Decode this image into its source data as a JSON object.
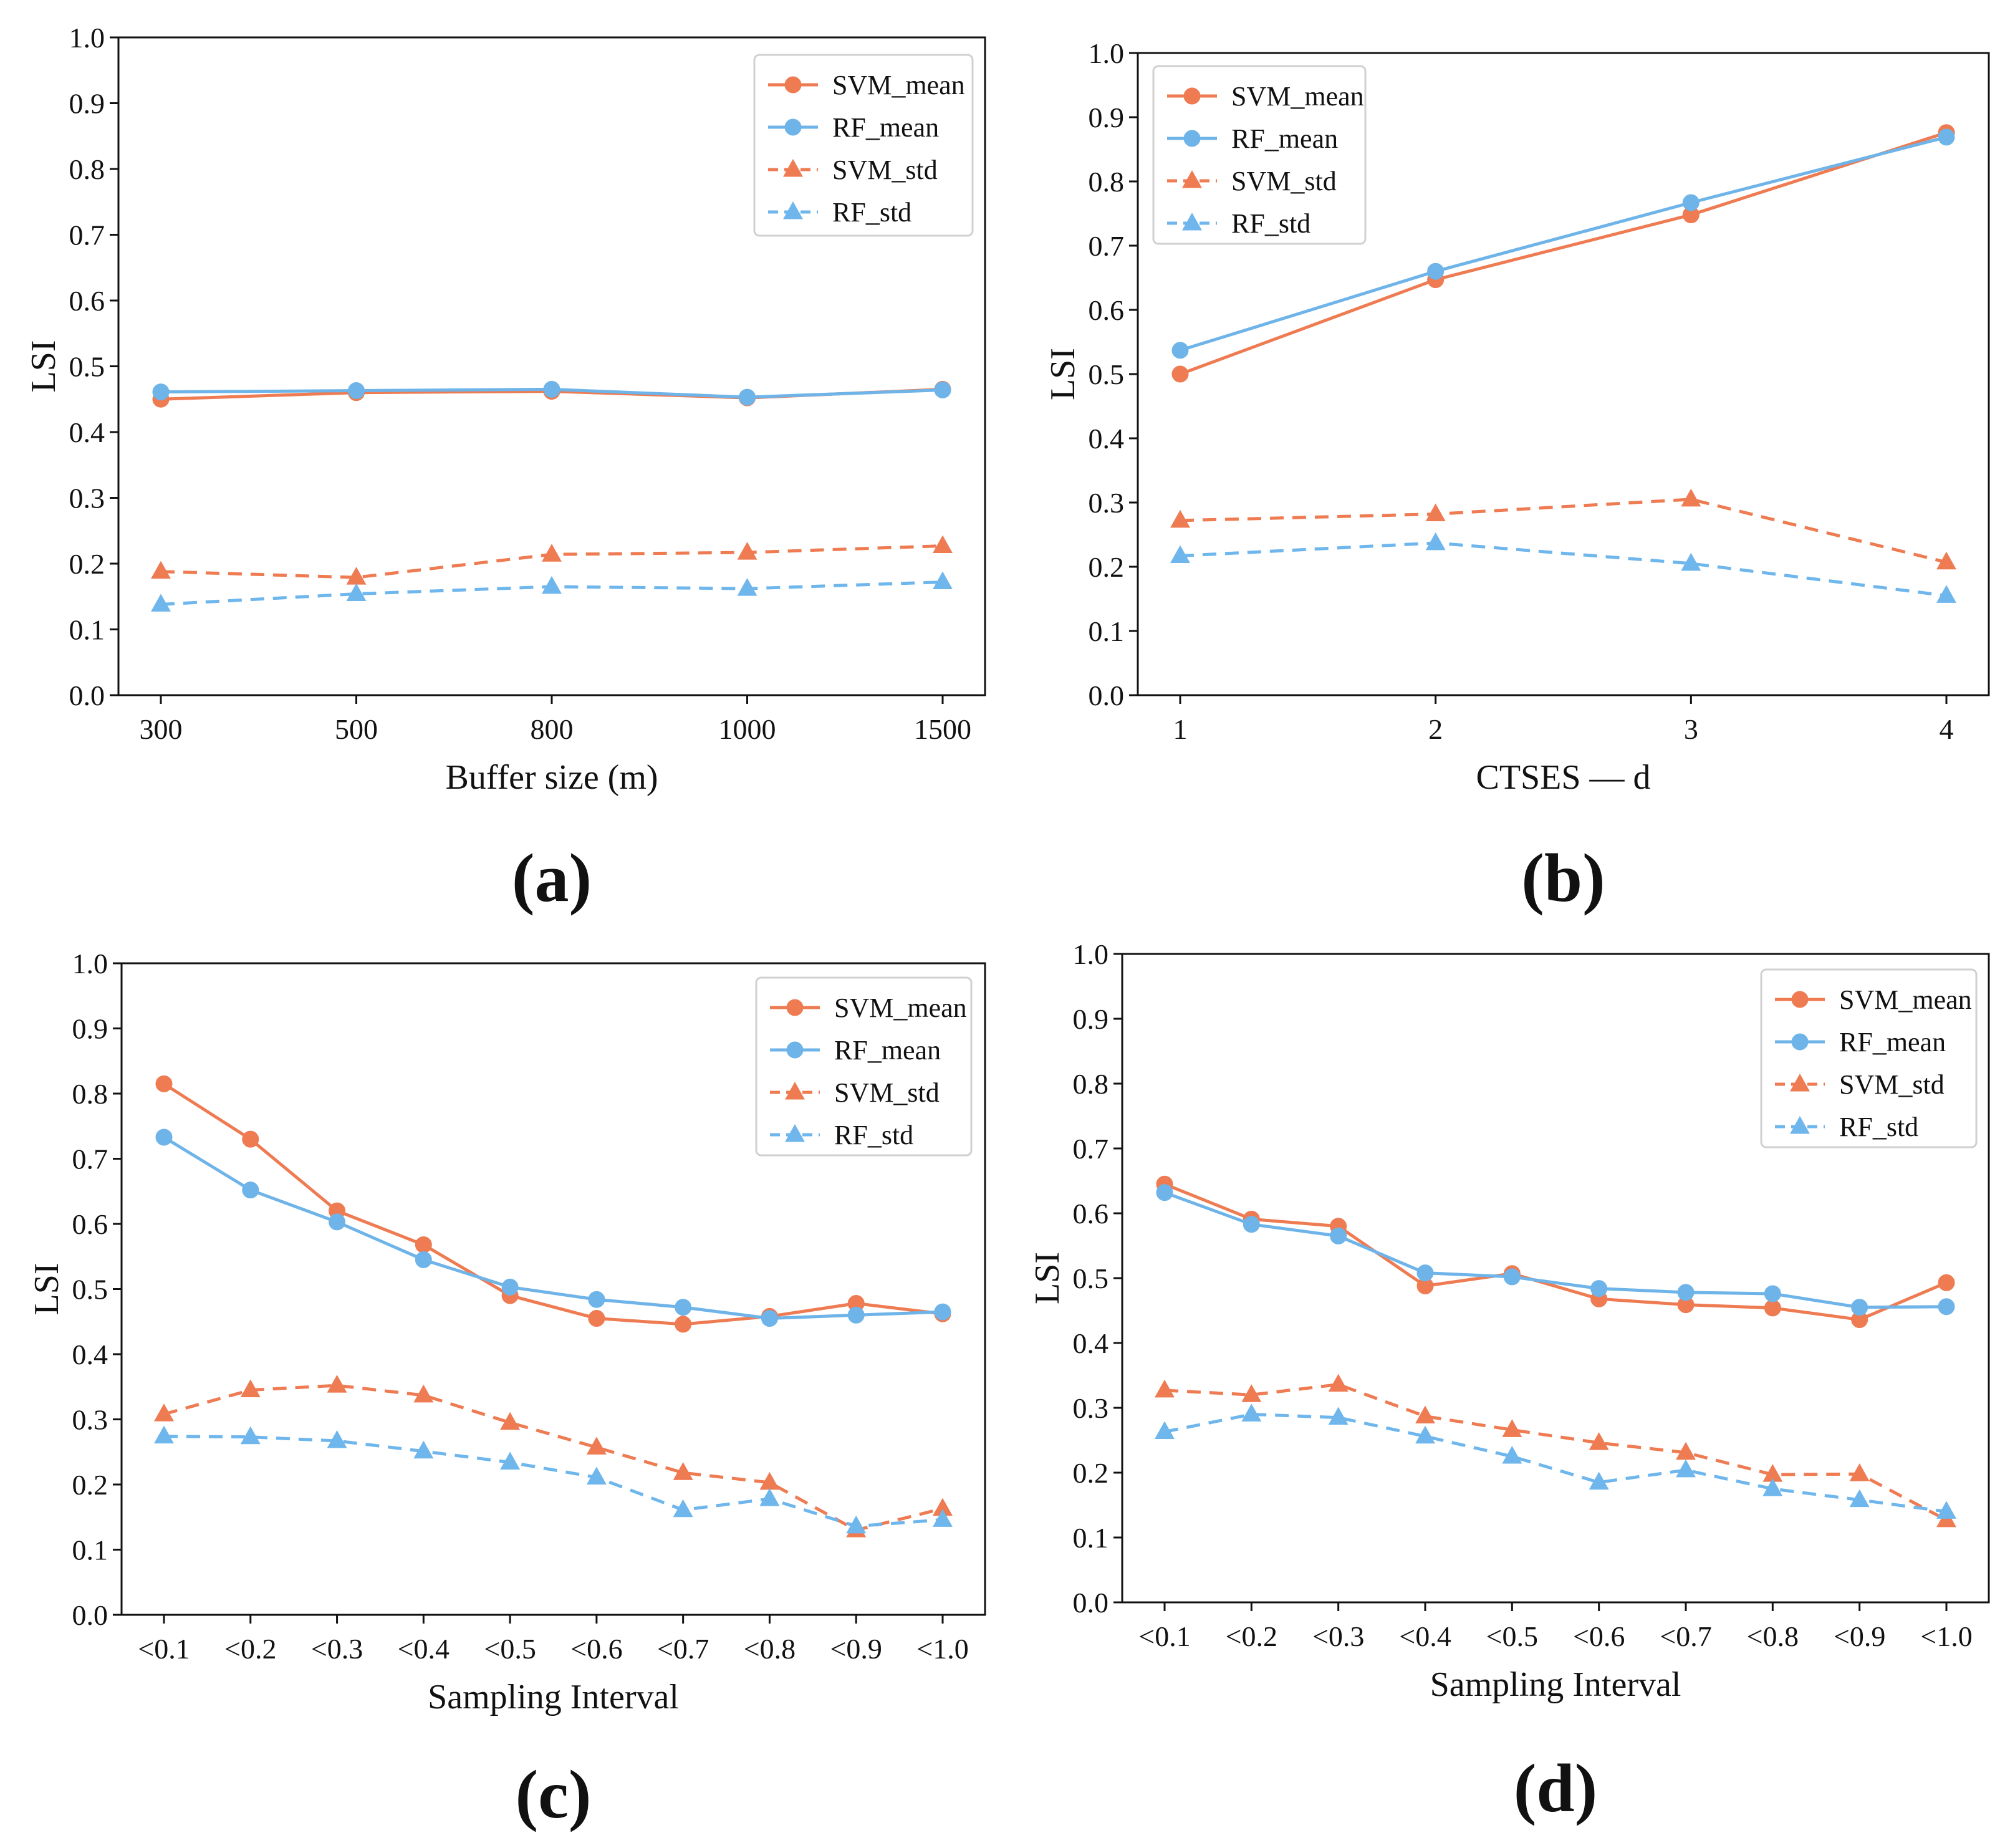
{
  "colors": {
    "svm": "#EE7B52",
    "rf": "#6EB6EC",
    "rf_mean": "#6FB4E8",
    "axis": "#111111",
    "legend_border": "#d0d0d0"
  },
  "chart_data": [
    {
      "panel_label": "(a)",
      "type": "line",
      "xlabel": "Buffer size (m)",
      "ylabel": "LSI",
      "categories": [
        "300",
        "500",
        "800",
        "1000",
        "1500"
      ],
      "ylim": [
        0,
        1
      ],
      "y_ticks": [
        "0.0",
        "0.1",
        "0.2",
        "0.3",
        "0.4",
        "0.5",
        "0.6",
        "0.7",
        "0.8",
        "0.9",
        "1.0"
      ],
      "grid": false,
      "legend_position": "upper right",
      "series": [
        {
          "name": "SVM_mean",
          "values": [
            0.45,
            0.46,
            0.462,
            0.452,
            0.465
          ]
        },
        {
          "name": "RF_mean",
          "values": [
            0.461,
            0.463,
            0.465,
            0.453,
            0.464
          ]
        },
        {
          "name": "SVM_std",
          "values": [
            0.188,
            0.179,
            0.214,
            0.217,
            0.227
          ]
        },
        {
          "name": "RF_std",
          "values": [
            0.138,
            0.154,
            0.165,
            0.162,
            0.172
          ]
        }
      ]
    },
    {
      "panel_label": "(b)",
      "type": "line",
      "xlabel": "CTSES — d",
      "ylabel": "LSI",
      "categories": [
        "1",
        "2",
        "3",
        "4"
      ],
      "ylim": [
        0,
        1
      ],
      "y_ticks": [
        "0.0",
        "0.1",
        "0.2",
        "0.3",
        "0.4",
        "0.5",
        "0.6",
        "0.7",
        "0.8",
        "0.9",
        "1.0"
      ],
      "grid": false,
      "legend_position": "upper left",
      "series": [
        {
          "name": "SVM_mean",
          "values": [
            0.5,
            0.647,
            0.748,
            0.876
          ]
        },
        {
          "name": "RF_mean",
          "values": [
            0.537,
            0.66,
            0.767,
            0.869
          ]
        },
        {
          "name": "SVM_std",
          "values": [
            0.272,
            0.282,
            0.305,
            0.207
          ]
        },
        {
          "name": "RF_std",
          "values": [
            0.217,
            0.237,
            0.205,
            0.155
          ]
        }
      ]
    },
    {
      "panel_label": "(c)",
      "type": "line",
      "xlabel": "Sampling Interval",
      "ylabel": "LSI",
      "categories": [
        "<0.1",
        "<0.2",
        "<0.3",
        "<0.4",
        "<0.5",
        "<0.6",
        "<0.7",
        "<0.8",
        "<0.9",
        "<1.0"
      ],
      "ylim": [
        0,
        1
      ],
      "y_ticks": [
        "0.0",
        "0.1",
        "0.2",
        "0.3",
        "0.4",
        "0.5",
        "0.6",
        "0.7",
        "0.8",
        "0.9",
        "1.0"
      ],
      "grid": false,
      "legend_position": "upper right",
      "series": [
        {
          "name": "SVM_mean",
          "values": [
            0.815,
            0.73,
            0.62,
            0.568,
            0.49,
            0.455,
            0.446,
            0.458,
            0.478,
            0.462
          ]
        },
        {
          "name": "RF_mean",
          "values": [
            0.733,
            0.652,
            0.603,
            0.545,
            0.503,
            0.484,
            0.472,
            0.455,
            0.46,
            0.465
          ]
        },
        {
          "name": "SVM_std",
          "values": [
            0.308,
            0.345,
            0.352,
            0.337,
            0.295,
            0.257,
            0.218,
            0.203,
            0.13,
            0.163
          ]
        },
        {
          "name": "RF_std",
          "values": [
            0.274,
            0.273,
            0.267,
            0.251,
            0.234,
            0.211,
            0.161,
            0.178,
            0.136,
            0.146
          ]
        }
      ]
    },
    {
      "panel_label": "(d)",
      "type": "line",
      "xlabel": "Sampling Interval",
      "ylabel": "LSI",
      "categories": [
        "<0.1",
        "<0.2",
        "<0.3",
        "<0.4",
        "<0.5",
        "<0.6",
        "<0.7",
        "<0.8",
        "<0.9",
        "<1.0"
      ],
      "ylim": [
        0,
        1
      ],
      "y_ticks": [
        "0.0",
        "0.1",
        "0.2",
        "0.3",
        "0.4",
        "0.5",
        "0.6",
        "0.7",
        "0.8",
        "0.9",
        "1.0"
      ],
      "grid": false,
      "legend_position": "upper right",
      "series": [
        {
          "name": "SVM_mean",
          "values": [
            0.645,
            0.591,
            0.58,
            0.488,
            0.507,
            0.468,
            0.459,
            0.454,
            0.436,
            0.493
          ]
        },
        {
          "name": "RF_mean",
          "values": [
            0.632,
            0.583,
            0.565,
            0.508,
            0.502,
            0.484,
            0.478,
            0.476,
            0.455,
            0.456
          ]
        },
        {
          "name": "SVM_std",
          "values": [
            0.327,
            0.32,
            0.336,
            0.287,
            0.266,
            0.246,
            0.231,
            0.197,
            0.198,
            0.127
          ]
        },
        {
          "name": "RF_std",
          "values": [
            0.263,
            0.29,
            0.285,
            0.256,
            0.225,
            0.185,
            0.204,
            0.175,
            0.158,
            0.14
          ]
        }
      ]
    }
  ]
}
